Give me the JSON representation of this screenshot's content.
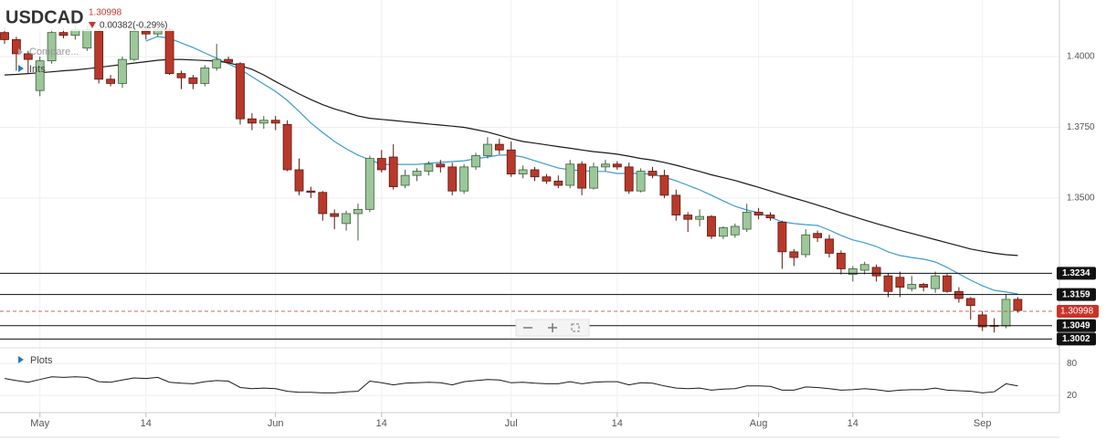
{
  "chart_data": {
    "type": "candlestick",
    "title": "USDCAD",
    "last_price": 1.30998,
    "change_label": "0.00382(-0.29%)",
    "compare_label": "Compare...",
    "indicators_label": "Ints",
    "plots_label": "Plots",
    "categories": [
      null,
      null,
      null,
      "May",
      null,
      null,
      null,
      null,
      null,
      null,
      null,
      null,
      "14",
      null,
      null,
      null,
      null,
      null,
      null,
      null,
      null,
      null,
      null,
      "Jun",
      null,
      null,
      null,
      null,
      null,
      null,
      null,
      null,
      "14",
      null,
      null,
      null,
      null,
      null,
      null,
      null,
      null,
      null,
      null,
      "Jul",
      null,
      null,
      null,
      null,
      null,
      null,
      null,
      null,
      "14",
      null,
      null,
      null,
      null,
      null,
      null,
      null,
      null,
      null,
      null,
      null,
      "Aug",
      null,
      null,
      null,
      null,
      null,
      null,
      null,
      "14",
      null,
      null,
      null,
      null,
      null,
      null,
      null,
      null,
      null,
      null,
      "Sep",
      null,
      null,
      null
    ],
    "open": [
      1.4085,
      1.406,
      1.401,
      1.388,
      1.3985,
      1.4085,
      1.4075,
      1.403,
      1.409,
      1.392,
      1.3905,
      1.399,
      1.409,
      1.408,
      1.4095,
      1.394,
      1.3925,
      1.3905,
      1.396,
      1.399,
      1.3975,
      1.378,
      1.3765,
      1.3775,
      1.376,
      1.36,
      1.3525,
      1.352,
      1.3445,
      1.341,
      1.3445,
      1.346,
      1.364,
      1.3645,
      1.3545,
      1.358,
      1.3595,
      1.362,
      1.361,
      1.3525,
      1.361,
      1.365,
      1.369,
      1.367,
      1.3585,
      1.36,
      1.3575,
      1.356,
      1.3545,
      1.362,
      1.3535,
      1.361,
      1.362,
      1.361,
      1.3525,
      1.3595,
      1.358,
      1.351,
      1.344,
      1.3425,
      1.3435,
      1.3365,
      1.337,
      1.339,
      1.345,
      1.344,
      1.3415,
      1.331,
      1.33,
      1.3375,
      1.3355,
      1.3305,
      1.323,
      1.3245,
      1.3255,
      1.3225,
      1.322,
      1.318,
      1.3195,
      1.318,
      1.3225,
      1.317,
      1.3145,
      1.3087,
      1.305,
      1.3048,
      1.3142
    ],
    "high": [
      1.4105,
      1.407,
      1.402,
      1.4,
      1.41,
      1.41,
      1.411,
      1.411,
      1.41,
      1.3935,
      1.4,
      1.411,
      1.411,
      1.411,
      1.41,
      1.395,
      1.3935,
      1.397,
      1.4045,
      1.4,
      1.398,
      1.38,
      1.379,
      1.379,
      1.3775,
      1.364,
      1.354,
      1.3525,
      1.346,
      1.3455,
      1.348,
      1.365,
      1.367,
      1.369,
      1.36,
      1.3605,
      1.363,
      1.3635,
      1.3625,
      1.362,
      1.366,
      1.3715,
      1.371,
      1.37,
      1.3615,
      1.361,
      1.3585,
      1.358,
      1.3635,
      1.363,
      1.3625,
      1.3635,
      1.363,
      1.3625,
      1.3605,
      1.361,
      1.36,
      1.353,
      1.345,
      1.346,
      1.344,
      1.34,
      1.341,
      1.348,
      1.3465,
      1.345,
      1.342,
      1.332,
      1.339,
      1.3385,
      1.337,
      1.3315,
      1.326,
      1.3275,
      1.3265,
      1.3235,
      1.324,
      1.3225,
      1.32,
      1.324,
      1.3235,
      1.3185,
      1.315,
      1.31,
      1.3075,
      1.3161,
      1.315
    ],
    "low": [
      1.4045,
      1.395,
      1.394,
      1.386,
      1.3975,
      1.4065,
      1.406,
      1.402,
      1.3905,
      1.3895,
      1.389,
      1.3985,
      1.406,
      1.407,
      1.3935,
      1.3885,
      1.3885,
      1.3895,
      1.395,
      1.3975,
      1.376,
      1.374,
      1.3745,
      1.374,
      1.3595,
      1.351,
      1.35,
      1.342,
      1.339,
      1.3385,
      1.335,
      1.345,
      1.359,
      1.353,
      1.3535,
      1.356,
      1.358,
      1.359,
      1.351,
      1.3515,
      1.36,
      1.364,
      1.3655,
      1.3575,
      1.357,
      1.356,
      1.355,
      1.3535,
      1.3535,
      1.351,
      1.353,
      1.3595,
      1.36,
      1.3515,
      1.352,
      1.357,
      1.35,
      1.342,
      1.338,
      1.34,
      1.3355,
      1.3355,
      1.336,
      1.338,
      1.3425,
      1.342,
      1.325,
      1.326,
      1.329,
      1.3345,
      1.329,
      1.323,
      1.3205,
      1.323,
      1.3205,
      1.315,
      1.315,
      1.317,
      1.317,
      1.3165,
      1.3165,
      1.313,
      1.307,
      1.303,
      1.3025,
      1.304,
      1.3095
    ],
    "close": [
      1.406,
      1.401,
      1.399,
      1.3985,
      1.4085,
      1.4075,
      1.4095,
      1.4095,
      1.392,
      1.3905,
      1.399,
      1.409,
      1.408,
      1.4095,
      1.394,
      1.3925,
      1.3905,
      1.396,
      1.399,
      1.398,
      1.378,
      1.3765,
      1.3775,
      1.3765,
      1.36,
      1.3525,
      1.352,
      1.3445,
      1.3435,
      1.3445,
      1.346,
      1.364,
      1.36,
      1.354,
      1.358,
      1.3595,
      1.362,
      1.361,
      1.3525,
      1.361,
      1.365,
      1.369,
      1.367,
      1.3585,
      1.36,
      1.3575,
      1.356,
      1.3545,
      1.362,
      1.3535,
      1.361,
      1.362,
      1.361,
      1.3525,
      1.3595,
      1.358,
      1.351,
      1.344,
      1.3425,
      1.3435,
      1.3365,
      1.3395,
      1.34,
      1.345,
      1.344,
      1.343,
      1.331,
      1.329,
      1.337,
      1.336,
      1.3305,
      1.325,
      1.325,
      1.3265,
      1.3225,
      1.317,
      1.3185,
      1.3195,
      1.3185,
      1.3225,
      1.317,
      1.3145,
      1.312,
      1.3045,
      1.3048,
      1.3142,
      1.3103
    ],
    "up_color": "#9cc79a",
    "down_color": "#b8392a",
    "lines": [
      {
        "color": "#3d9bd1",
        "values": [
          null,
          null,
          null,
          null,
          null,
          null,
          null,
          null,
          null,
          null,
          null,
          null,
          1.4055,
          1.4071,
          1.4065,
          1.4048,
          1.4032,
          1.4013,
          1.3994,
          1.3974,
          1.3955,
          1.3929,
          1.3903,
          1.3877,
          1.3845,
          1.3806,
          1.3765,
          1.3732,
          1.37,
          1.3674,
          1.3652,
          1.3635,
          1.3619,
          1.3619,
          1.3619,
          1.3619,
          1.3623,
          1.3626,
          1.3629,
          1.3632,
          1.3639,
          1.3645,
          1.3652,
          1.3652,
          1.3645,
          1.3632,
          1.3619,
          1.3606,
          1.36,
          1.3597,
          1.3594,
          1.3594,
          1.3587,
          1.3587,
          1.3587,
          1.3584,
          1.3574,
          1.3561,
          1.3545,
          1.3529,
          1.351,
          1.349,
          1.3471,
          1.3458,
          1.3448,
          1.3432,
          1.3416,
          1.341,
          1.3406,
          1.3403,
          1.3387,
          1.3368,
          1.3352,
          1.3342,
          1.3329,
          1.331,
          1.3297,
          1.329,
          1.3284,
          1.3274,
          1.3255,
          1.3232,
          1.321,
          1.319,
          1.3174,
          1.3168,
          1.3161
        ]
      },
      {
        "color": "#1a1a1a",
        "values": [
          1.3935,
          1.3937,
          1.394,
          1.3943,
          1.3946,
          1.395,
          1.3953,
          1.3957,
          1.3962,
          1.3967,
          1.3972,
          1.3977,
          1.3982,
          1.3987,
          1.399,
          1.399,
          1.3988,
          1.3986,
          1.3984,
          1.3978,
          1.3968,
          1.3955,
          1.3935,
          1.3912,
          1.389,
          1.3868,
          1.3848,
          1.383,
          1.3815,
          1.3803,
          1.379,
          1.3782,
          1.3778,
          1.3774,
          1.377,
          1.3766,
          1.3762,
          1.3758,
          1.3754,
          1.375,
          1.3742,
          1.3733,
          1.3722,
          1.371,
          1.37,
          1.3694,
          1.3688,
          1.3682,
          1.3676,
          1.367,
          1.3664,
          1.366,
          1.3655,
          1.3648,
          1.364,
          1.3634,
          1.3626,
          1.3616,
          1.3605,
          1.3594,
          1.3582,
          1.3572,
          1.3562,
          1.355,
          1.3538,
          1.3525,
          1.3512,
          1.35,
          1.3488,
          1.3475,
          1.3462,
          1.3448,
          1.3435,
          1.3422,
          1.341,
          1.3398,
          1.3386,
          1.3375,
          1.3364,
          1.3353,
          1.3342,
          1.3331,
          1.332,
          1.3312,
          1.3305,
          1.33,
          1.3297
        ]
      }
    ],
    "levels": [
      1.3234,
      1.3159,
      1.3049,
      1.3002
    ],
    "level_color": "#111111",
    "price_color": "#c8342a",
    "ylim": [
      1.2974,
      1.42
    ],
    "yticks": [
      {
        "value": 1.4,
        "label": "1.4000"
      },
      {
        "value": 1.375,
        "label": "1.3750"
      },
      {
        "value": 1.35,
        "label": "1.3500"
      }
    ],
    "grid": true,
    "oscillator": {
      "type": "line",
      "color": "#1a1a1a",
      "values": [
        52,
        48,
        45,
        50,
        55,
        54,
        55,
        54,
        46,
        45,
        49,
        53,
        52,
        54,
        45,
        43,
        42,
        46,
        48,
        47,
        35,
        33,
        34,
        33,
        28,
        26,
        26,
        25,
        25,
        27,
        28,
        47,
        44,
        40,
        43,
        44,
        45,
        44,
        40,
        46,
        48,
        50,
        49,
        44,
        45,
        43,
        42,
        42,
        46,
        42,
        45,
        46,
        46,
        40,
        44,
        43,
        38,
        34,
        33,
        34,
        30,
        32,
        33,
        38,
        38,
        37,
        30,
        30,
        36,
        35,
        33,
        30,
        31,
        33,
        31,
        28,
        30,
        31,
        31,
        34,
        30,
        29,
        28,
        25,
        27,
        42,
        38
      ],
      "ylim": [
        -12,
        106
      ],
      "yticks": [
        80,
        20
      ]
    }
  }
}
